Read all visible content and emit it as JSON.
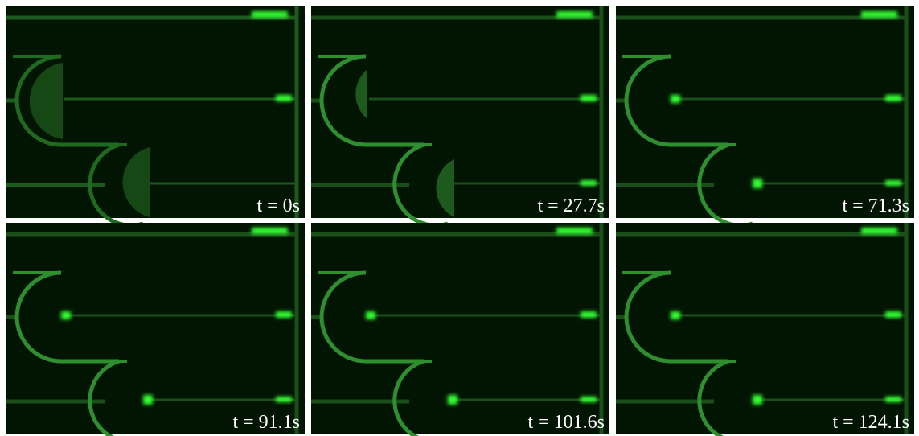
{
  "panels": [
    {
      "label": "t = 0s"
    },
    {
      "label": "t = 27.7s"
    },
    {
      "label": "t = 71.3s"
    },
    {
      "label": "t = 91.1s"
    },
    {
      "label": "t = 101.6s"
    },
    {
      "label": "t = 124.1s"
    }
  ]
}
